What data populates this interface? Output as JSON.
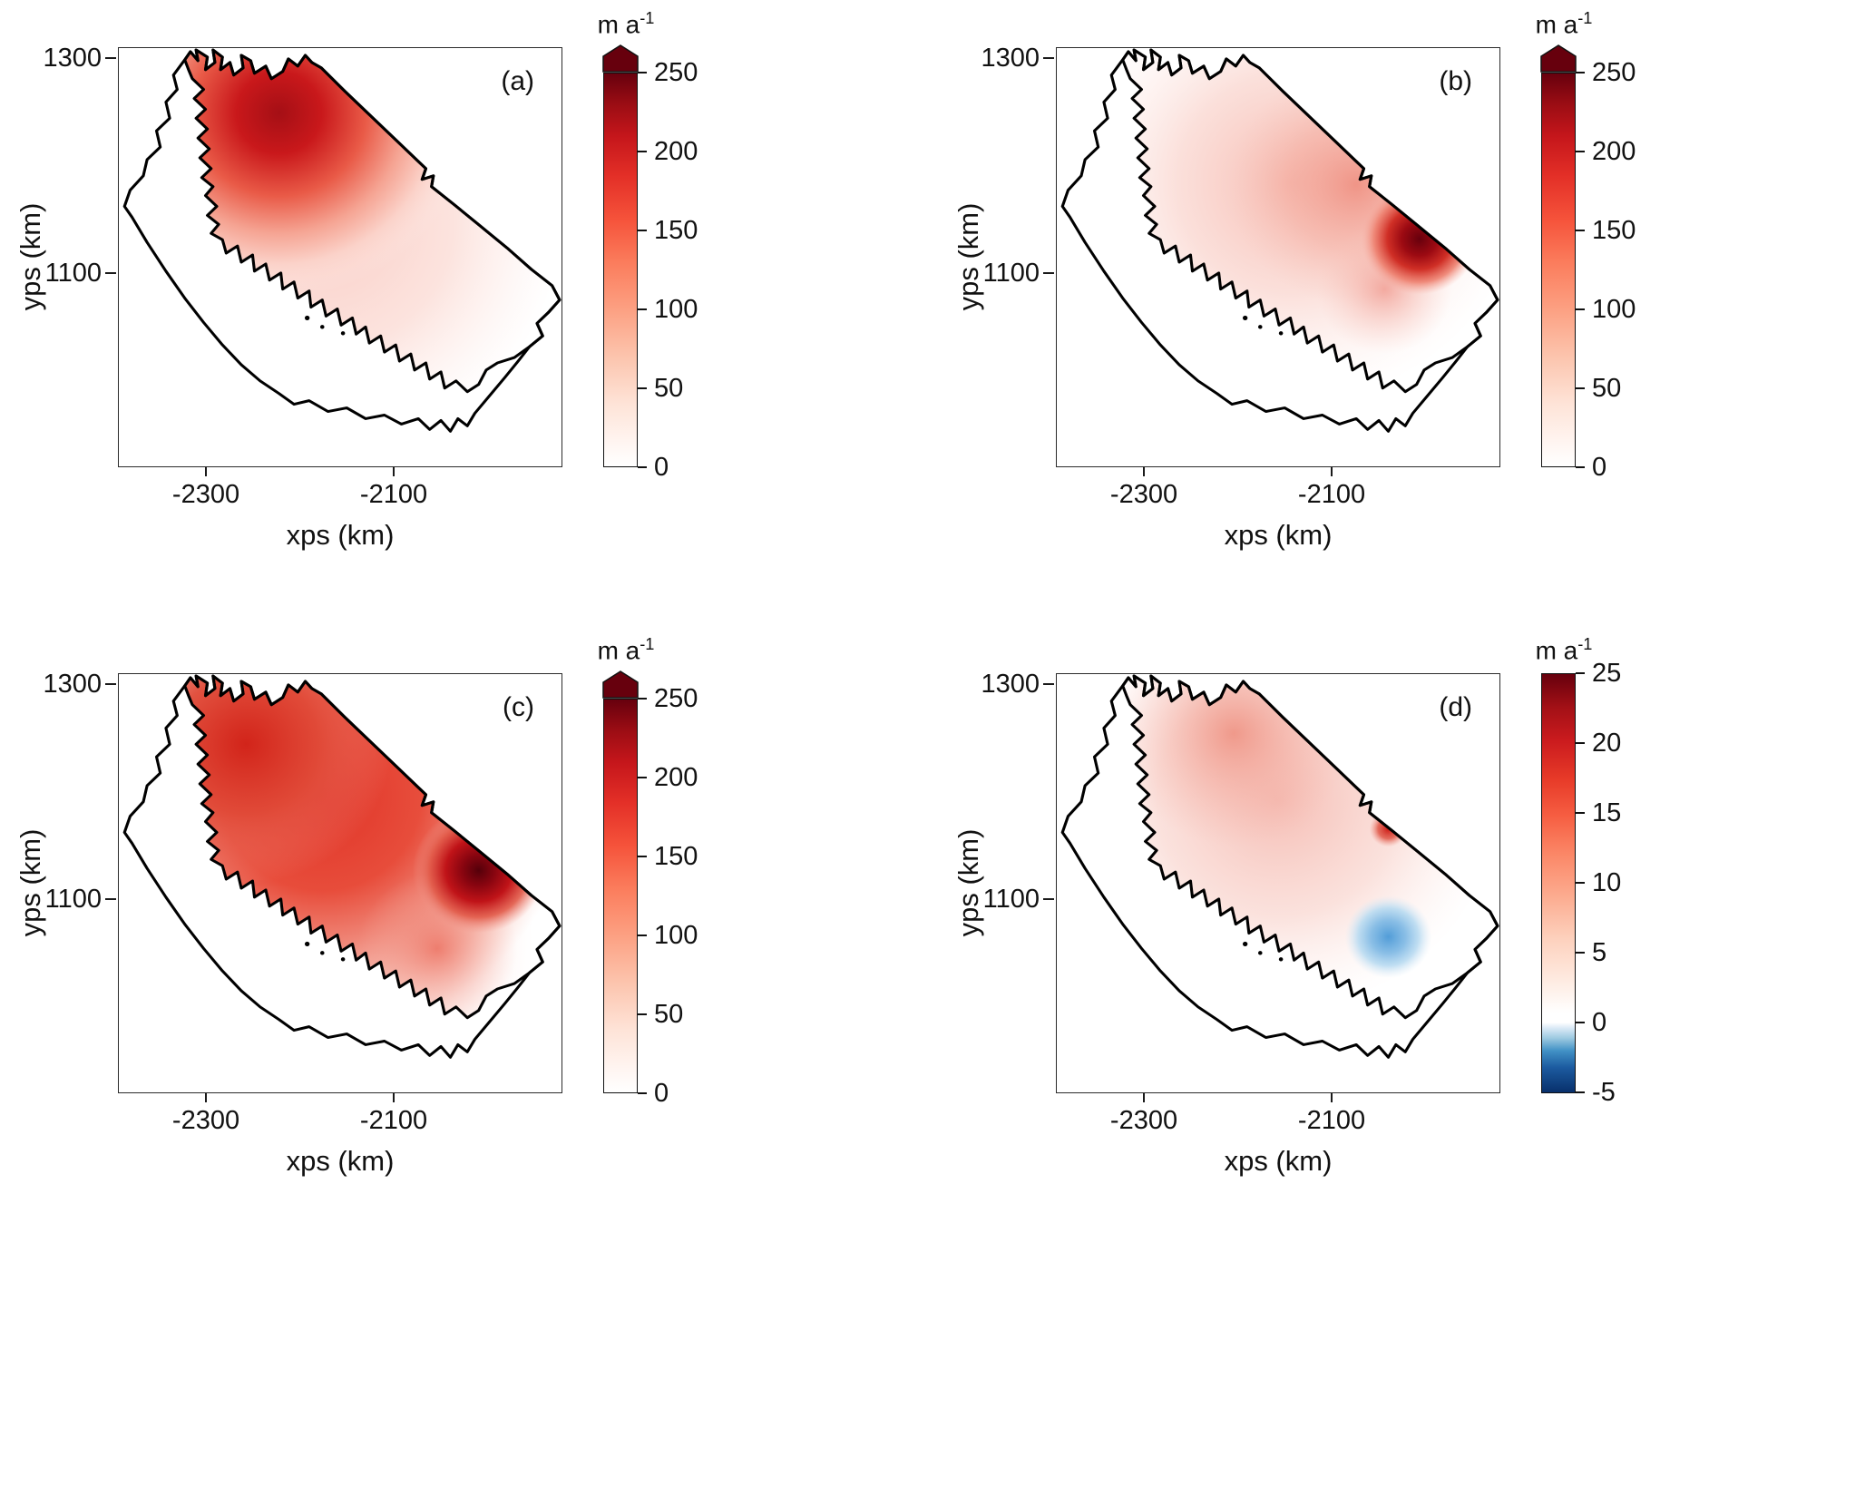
{
  "figure": {
    "unit_base": "m a",
    "unit_exp": "-1",
    "xlabel": "xps (km)",
    "ylabel": "yps (km)",
    "panels": [
      {
        "label": "(a)",
        "xticks": [
          "-2300",
          "-2100"
        ],
        "yticks": [
          "1300",
          "1100"
        ],
        "cticks": [
          "250",
          "200",
          "150",
          "100",
          "50",
          "0"
        ]
      },
      {
        "label": "(b)",
        "xticks": [
          "-2300",
          "-2100"
        ],
        "yticks": [
          "1300",
          "1100"
        ],
        "cticks": [
          "250",
          "200",
          "150",
          "100",
          "50",
          "0"
        ]
      },
      {
        "label": "(c)",
        "xticks": [
          "-2300",
          "-2100"
        ],
        "yticks": [
          "1300",
          "1100"
        ],
        "cticks": [
          "250",
          "200",
          "150",
          "100",
          "50",
          "0"
        ]
      },
      {
        "label": "(d)",
        "xticks": [
          "-2300",
          "-2100"
        ],
        "yticks": [
          "1300",
          "1100"
        ],
        "cticks": [
          "25",
          "20",
          "15",
          "10",
          "5",
          "0",
          "-5"
        ]
      }
    ]
  },
  "chart_data": [
    {
      "type": "heatmap",
      "panel": "(a)",
      "xlabel": "xps (km)",
      "ylabel": "yps (km)",
      "x_tick_values": [
        -2300,
        -2100
      ],
      "y_tick_values": [
        1300,
        1100
      ],
      "xlim_km": [
        -2395,
        -1930
      ],
      "ylim_km": [
        915,
        1310
      ],
      "colorbar": {
        "unit": "m a^-1",
        "min": 0,
        "max": 250,
        "tick_values": [
          250,
          200,
          150,
          100,
          50,
          0
        ],
        "colormap": "white-to-dark-red",
        "end_colors": [
          "#ffffff",
          "#67000d"
        ],
        "arrow_above_max": true
      },
      "outline": "glacier drainage basin with jagged coastline on polar stereographic grid",
      "features": [
        {
          "description": "maximum values in north-central upstream region",
          "approx_xps_km": -2250,
          "approx_yps_km": 1250,
          "approx_value": 220
        },
        {
          "description": "smooth decay to near 0 toward the southern interior and margins",
          "approx_value": 0
        }
      ]
    },
    {
      "type": "heatmap",
      "panel": "(b)",
      "xlabel": "xps (km)",
      "ylabel": "yps (km)",
      "x_tick_values": [
        -2300,
        -2100
      ],
      "y_tick_values": [
        1300,
        1100
      ],
      "xlim_km": [
        -2395,
        -1930
      ],
      "ylim_km": [
        915,
        1310
      ],
      "colorbar": {
        "unit": "m a^-1",
        "min": 0,
        "max": 250,
        "tick_values": [
          250,
          200,
          150,
          100,
          50,
          0
        ],
        "colormap": "white-to-dark-red",
        "end_colors": [
          "#ffffff",
          "#67000d"
        ],
        "arrow_above_max": true
      },
      "outline": "same basin outline as panel (a)",
      "features": [
        {
          "description": "pale field of roughly 0-80 over most of the interior",
          "approx_value": 50
        },
        {
          "description": "intense localized maximum near eastern outlet",
          "approx_xps_km": -2040,
          "approx_yps_km": 1120,
          "approx_value": 250
        },
        {
          "description": "moderate band along northeast margin",
          "approx_value": 100
        }
      ]
    },
    {
      "type": "heatmap",
      "panel": "(c)",
      "xlabel": "xps (km)",
      "ylabel": "yps (km)",
      "x_tick_values": [
        -2300,
        -2100
      ],
      "y_tick_values": [
        1300,
        1100
      ],
      "xlim_km": [
        -2395,
        -1930
      ],
      "ylim_km": [
        915,
        1310
      ],
      "colorbar": {
        "unit": "m a^-1",
        "min": 0,
        "max": 250,
        "tick_values": [
          250,
          200,
          150,
          100,
          50,
          0
        ],
        "colormap": "white-to-dark-red",
        "end_colors": [
          "#ffffff",
          "#67000d"
        ],
        "arrow_above_max": true
      },
      "outline": "same basin outline as panel (a)",
      "features": [
        {
          "description": "broad high values 100-200 across northern interior",
          "approx_value": 150
        },
        {
          "description": "dark maximum near eastern outlet",
          "approx_xps_km": -2045,
          "approx_yps_km": 1115,
          "approx_value": 250
        },
        {
          "description": "southern shaded area decreasing to 20-80",
          "approx_value": 50
        }
      ]
    },
    {
      "type": "heatmap",
      "panel": "(d)",
      "xlabel": "xps (km)",
      "ylabel": "yps (km)",
      "x_tick_values": [
        -2300,
        -2100
      ],
      "y_tick_values": [
        1300,
        1100
      ],
      "xlim_km": [
        -2395,
        -1930
      ],
      "ylim_km": [
        915,
        1310
      ],
      "colorbar": {
        "unit": "m a^-1",
        "min": -5,
        "max": 25,
        "tick_values": [
          25,
          20,
          15,
          10,
          5,
          0,
          -5
        ],
        "colormap": "dark-blue-white-dark-red diverging, zero at white",
        "end_colors": [
          "#08306b",
          "#67000d"
        ],
        "arrow_above_max": false
      },
      "outline": "same basin outline as panel (a)",
      "features": [
        {
          "description": "widespread light positive values 2-8 over northern interior",
          "approx_value": 5
        },
        {
          "description": "small strong positive patch near eastern outlet",
          "approx_xps_km": -2060,
          "approx_yps_km": 1135,
          "approx_value": 18
        },
        {
          "description": "negative (blue) patch in southeastern area",
          "approx_xps_km": -2045,
          "approx_yps_km": 1050,
          "approx_value": -3
        }
      ]
    }
  ]
}
